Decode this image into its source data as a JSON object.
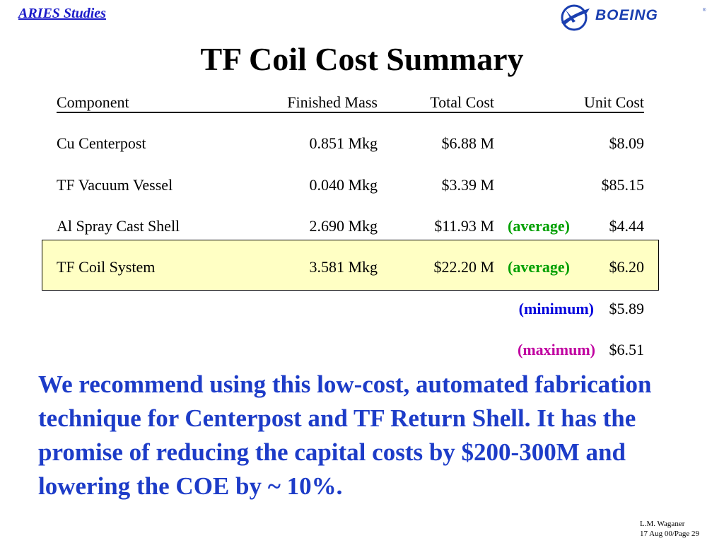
{
  "header": {
    "studies_link": "ARIES Studies",
    "logo_text": "BOEING"
  },
  "title": "TF Coil Cost Summary",
  "table": {
    "columns": [
      "Component",
      "Finished Mass",
      "Total Cost",
      "Unit Cost"
    ],
    "rows": [
      {
        "component": "Cu Centerpost",
        "mass": "0.851 Mkg",
        "total": "$6.88 M",
        "note": "",
        "unit": "$8.09"
      },
      {
        "component": "TF Vacuum Vessel",
        "mass": "0.040 Mkg",
        "total": "$3.39 M",
        "note": "",
        "unit": "$85.15"
      },
      {
        "component": "Al Spray Cast Shell",
        "mass": "2.690 Mkg",
        "total": "$11.93 M",
        "note": "(average)",
        "unit": "$4.44"
      },
      {
        "component": "TF Coil System",
        "mass": "3.581 Mkg",
        "total": "$22.20 M",
        "note": "(average)",
        "unit": "$6.20"
      }
    ],
    "minimum": {
      "note": "(minimum)",
      "unit": "$5.89"
    },
    "maximum": {
      "note": "(maximum)",
      "unit": "$6.51"
    }
  },
  "recommendation": "We recommend using this low-cost, automated fabrication technique for Centerpost and TF Return Shell.  It has the promise of reducing the capital costs by $200-300M and lowering the COE by ~ 10%.",
  "footer": {
    "author": "L.M. Waganer",
    "date_page": "17 Aug 00/Page 29"
  },
  "colors": {
    "header": "#1a1ac8",
    "recommend": "#1d3cc8",
    "average": "#00a000",
    "minimum": "#0000dd",
    "maximum": "#c000a0",
    "highlight": "#ffffc4"
  },
  "icons": [
    "boeing-logo-icon"
  ]
}
